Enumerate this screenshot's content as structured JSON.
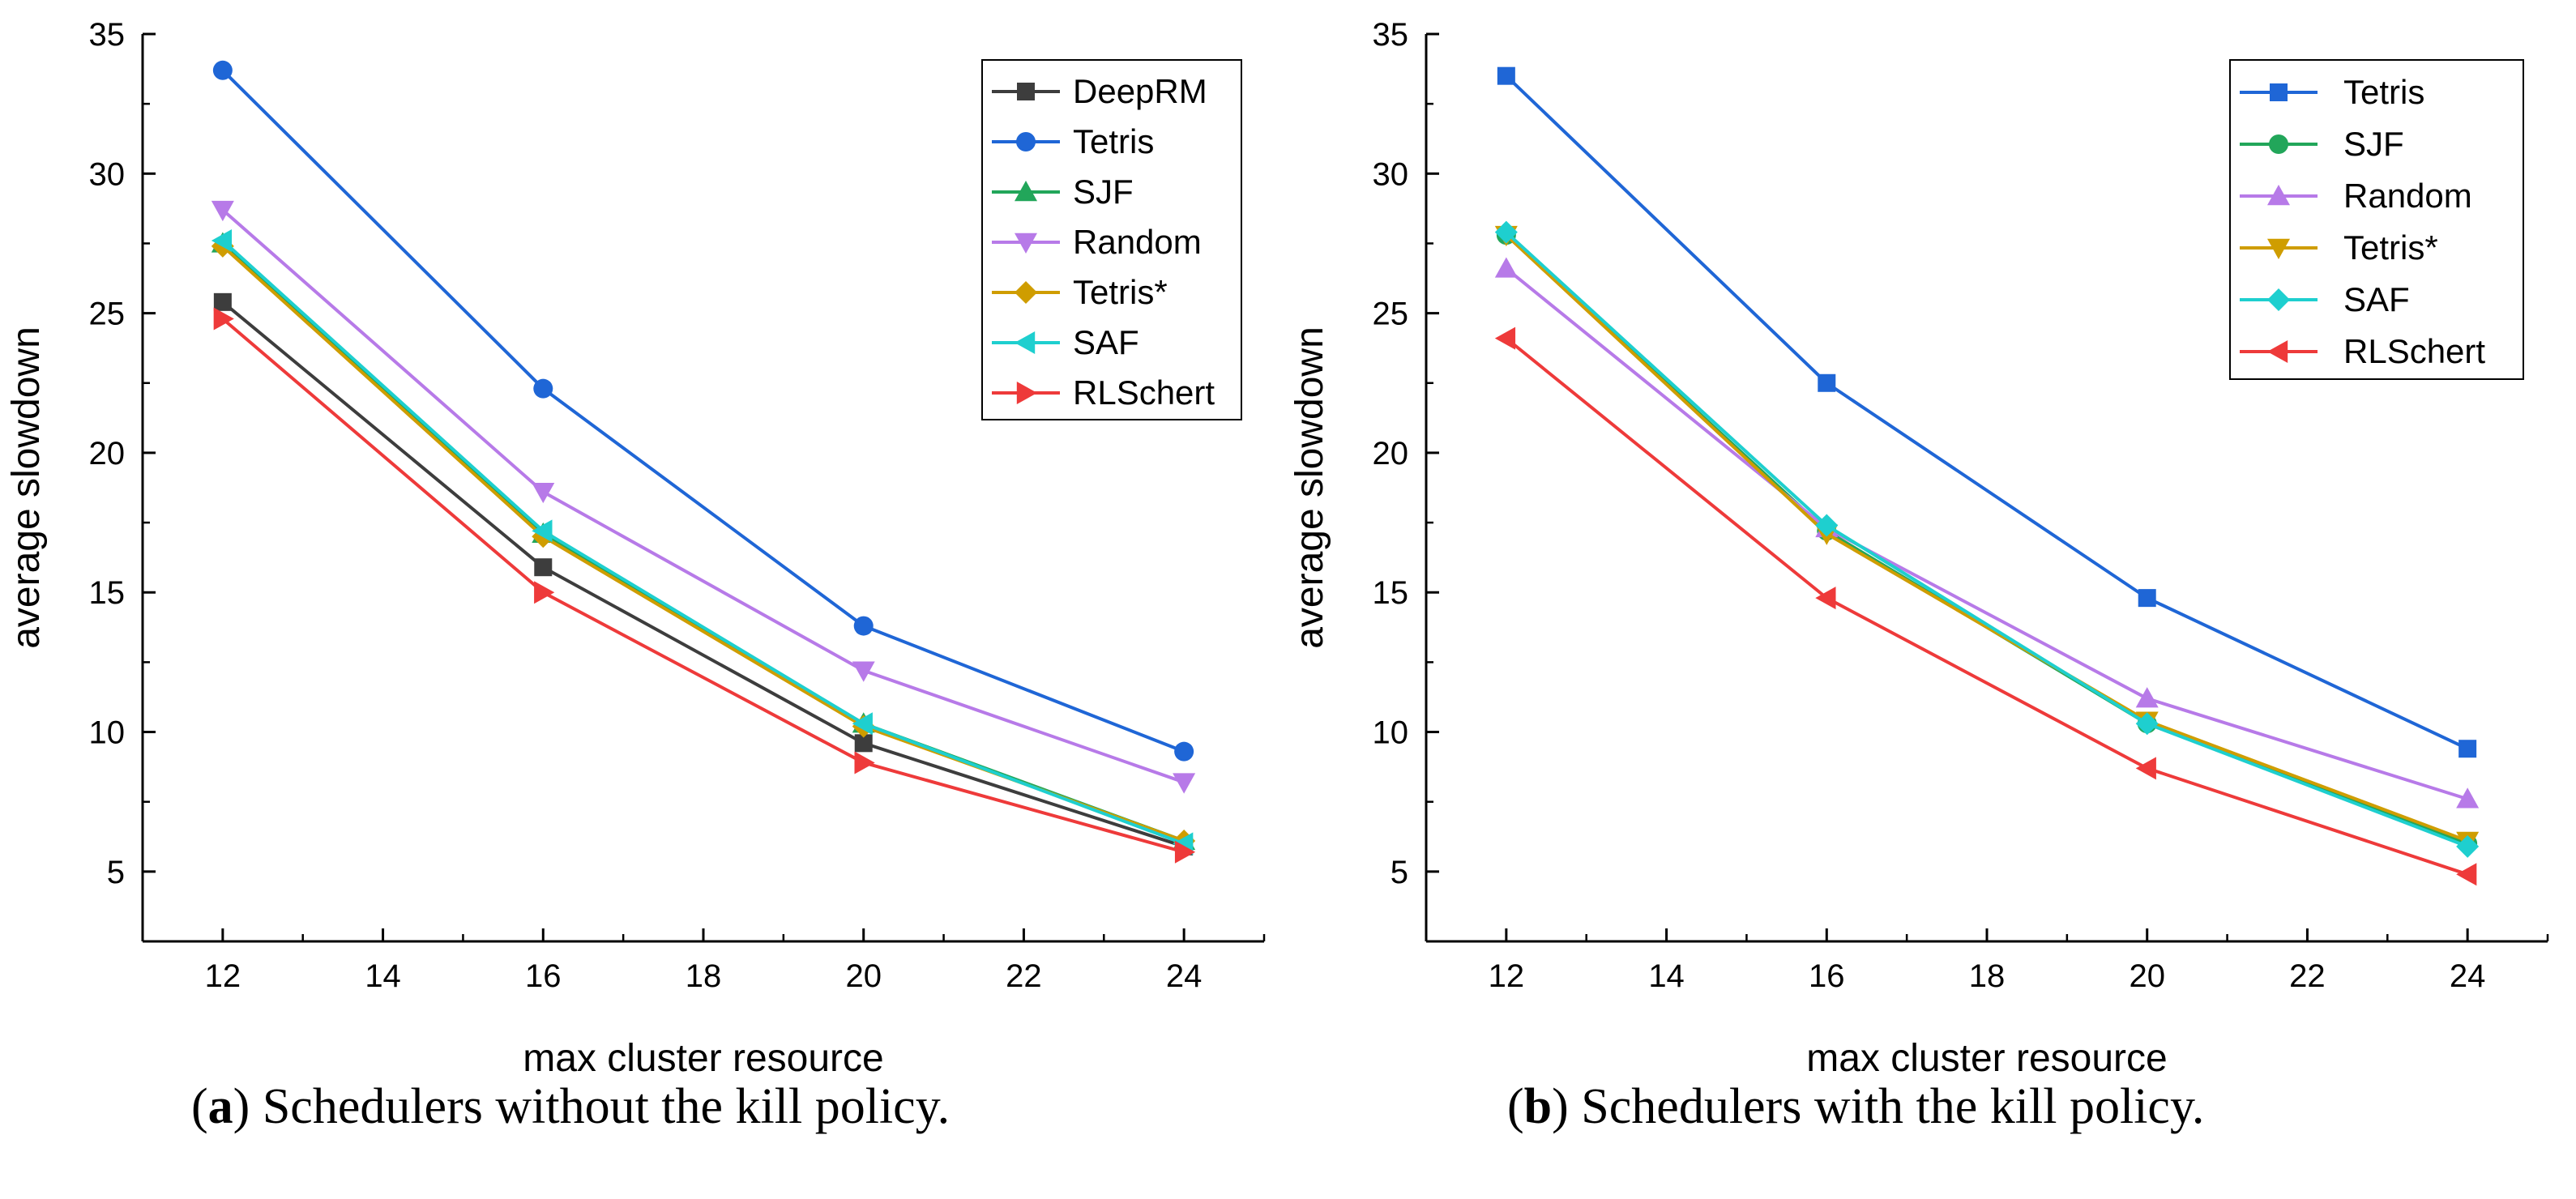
{
  "figures": [
    {
      "id": "a",
      "caption_tag": "a",
      "caption_text": "Schedulers without the kill policy.",
      "legend_position": "top-right"
    },
    {
      "id": "b",
      "caption_tag": "b",
      "caption_text": "Schedulers with the kill policy.",
      "legend_position": "top-right"
    }
  ],
  "chart_data": [
    {
      "type": "line",
      "title": "",
      "xlabel": "max cluster resource",
      "ylabel": "average slowdown",
      "xlim": [
        11,
        25
      ],
      "ylim": [
        2.5,
        35
      ],
      "xticks": [
        12,
        14,
        16,
        18,
        20,
        22,
        24
      ],
      "yticks": [
        5,
        10,
        15,
        20,
        25,
        30,
        35
      ],
      "grid": false,
      "x": [
        12,
        16,
        20,
        24
      ],
      "series": [
        {
          "name": "DeepRM",
          "values": [
            25.4,
            15.9,
            9.6,
            5.9
          ],
          "color": "#3d3d3d",
          "marker": "square"
        },
        {
          "name": "Tetris",
          "values": [
            33.7,
            22.3,
            13.8,
            9.3
          ],
          "color": "#1f66d6",
          "marker": "circle"
        },
        {
          "name": "SJF",
          "values": [
            27.5,
            17.1,
            10.3,
            6.1
          ],
          "color": "#22a65a",
          "marker": "triangle-up"
        },
        {
          "name": "Random",
          "values": [
            28.7,
            18.6,
            12.2,
            8.2
          ],
          "color": "#b77ae8",
          "marker": "triangle-down"
        },
        {
          "name": "Tetris*",
          "values": [
            27.4,
            17.0,
            10.2,
            6.1
          ],
          "color": "#cf9d00",
          "marker": "diamond"
        },
        {
          "name": "SAF",
          "values": [
            27.6,
            17.2,
            10.3,
            6.0
          ],
          "color": "#1ecfcf",
          "marker": "triangle-left"
        },
        {
          "name": "RLSchert",
          "values": [
            24.8,
            15.0,
            8.9,
            5.7
          ],
          "color": "#ee3a3a",
          "marker": "triangle-right"
        }
      ]
    },
    {
      "type": "line",
      "title": "",
      "xlabel": "max cluster resource",
      "ylabel": "average slowdown",
      "xlim": [
        11,
        25
      ],
      "ylim": [
        2.5,
        35
      ],
      "xticks": [
        12,
        14,
        16,
        18,
        20,
        22,
        24
      ],
      "yticks": [
        5,
        10,
        15,
        20,
        25,
        30,
        35
      ],
      "grid": false,
      "x": [
        12,
        16,
        20,
        24
      ],
      "series": [
        {
          "name": "Tetris",
          "values": [
            33.5,
            22.5,
            14.8,
            9.4
          ],
          "color": "#1f66d6",
          "marker": "square"
        },
        {
          "name": "SJF",
          "values": [
            27.8,
            17.2,
            10.3,
            6.0
          ],
          "color": "#22a65a",
          "marker": "circle"
        },
        {
          "name": "Random",
          "values": [
            26.6,
            17.3,
            11.2,
            7.6
          ],
          "color": "#b77ae8",
          "marker": "triangle-up"
        },
        {
          "name": "Tetris*",
          "values": [
            27.8,
            17.1,
            10.4,
            6.1
          ],
          "color": "#cf9d00",
          "marker": "triangle-down"
        },
        {
          "name": "SAF",
          "values": [
            27.9,
            17.4,
            10.3,
            5.9
          ],
          "color": "#1ecfcf",
          "marker": "diamond"
        },
        {
          "name": "RLSchert",
          "values": [
            24.1,
            14.8,
            8.7,
            4.9
          ],
          "color": "#ee3a3a",
          "marker": "triangle-left"
        }
      ]
    }
  ]
}
